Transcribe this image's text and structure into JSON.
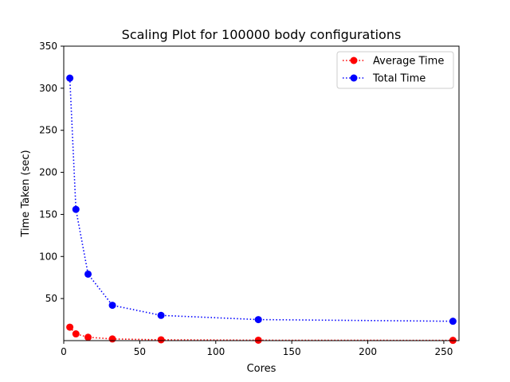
{
  "chart_data": {
    "type": "line",
    "title": "Scaling Plot for 100000 body configurations",
    "xlabel": "Cores",
    "ylabel": "Time Taken (sec)",
    "xlim": [
      0,
      260
    ],
    "ylim": [
      0,
      350
    ],
    "xticks": [
      0,
      50,
      100,
      150,
      200,
      250
    ],
    "yticks": [
      50,
      100,
      150,
      200,
      250,
      300,
      350
    ],
    "grid": false,
    "legend_position": "top-right",
    "series": [
      {
        "name": "Average Time",
        "color": "#ff0000",
        "line_style": "dotted",
        "marker": "circle",
        "x": [
          4,
          8,
          16,
          32,
          64,
          128,
          256
        ],
        "y": [
          16,
          8,
          4,
          2,
          1,
          0.5,
          0.3
        ]
      },
      {
        "name": "Total Time",
        "color": "#0000ff",
        "line_style": "dotted",
        "marker": "circle",
        "x": [
          4,
          8,
          16,
          32,
          64,
          128,
          256
        ],
        "y": [
          312,
          156,
          79,
          42,
          30,
          25,
          23
        ]
      }
    ]
  }
}
